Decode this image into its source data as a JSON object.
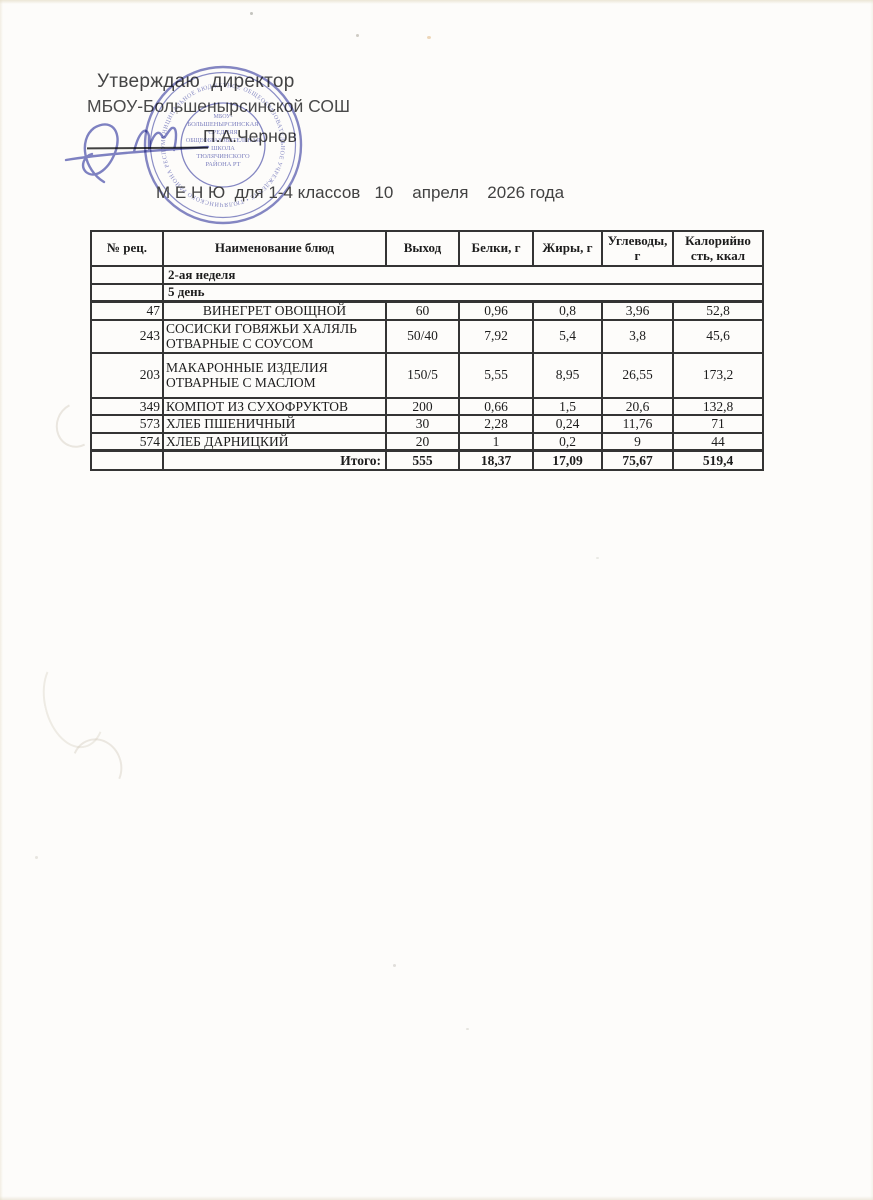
{
  "document": {
    "approval_line1": "Утверждаю  директор",
    "approval_line2": "МБОУ-Большенырсинской СОШ",
    "signer_name": "П.А.Чернов",
    "title": "М Е Н Ю  для 1-4 классов   10    апреля    2026 года"
  },
  "stamp": {
    "color": "#5a5fb2",
    "ring_text": "МУНИЦИПАЛЬНОЕ БЮДЖЕТНОЕ ОБЩЕОБРАЗОВАТЕЛЬНОЕ УЧРЕЖДЕНИЕ • ТЮЛЯЧИНСКОГО РАЙОНА РЕСПУБЛИКИ ТАТАРСТАН •",
    "center_lines": [
      "МБОУ-",
      "БОЛЬШЕНЫРСИНСКАЯ",
      "СРЕДНЯЯ",
      "ОБЩЕОБРАЗОВАТЕЛЬНАЯ",
      "ШКОЛА",
      "ТЮЛЯЧИНСКОГО",
      "РАЙОНА РТ"
    ]
  },
  "menu_table": {
    "headers": [
      "№ рец.",
      "Наименование блюд",
      "Выход",
      "Белки, г",
      "Жиры, г",
      "Углеводы, г",
      "Калорийно сть, ккал"
    ],
    "week_label": "2-ая неделя",
    "day_label": "5 день",
    "rows": [
      {
        "num": "47",
        "name": "ВИНЕГРЕТ ОВОЩНОЙ",
        "output": "60",
        "protein": "0,96",
        "fat": "0,8",
        "carbs": "3,96",
        "kcal": "52,8",
        "name_align": "center"
      },
      {
        "num": "243",
        "name": "СОСИСКИ ГОВЯЖЬИ ХАЛЯЛЬ\nОТВАРНЫЕ С СОУСОМ",
        "output": "50/40",
        "protein": "7,92",
        "fat": "5,4",
        "carbs": "3,8",
        "kcal": "45,6",
        "name_align": "left"
      },
      {
        "num": "203",
        "name": "МАКАРОННЫЕ ИЗДЕЛИЯ\nОТВАРНЫЕ С МАСЛОМ",
        "output": "150/5",
        "protein": "5,55",
        "fat": "8,95",
        "carbs": "26,55",
        "kcal": "173,2",
        "name_align": "left"
      },
      {
        "num": "349",
        "name": "КОМПОТ ИЗ СУХОФРУКТОВ",
        "output": "200",
        "protein": "0,66",
        "fat": "1,5",
        "carbs": "20,6",
        "kcal": "132,8",
        "name_align": "left"
      },
      {
        "num": "573",
        "name": "ХЛЕБ ПШЕНИЧНЫЙ",
        "output": "30",
        "protein": "2,28",
        "fat": "0,24",
        "carbs": "11,76",
        "kcal": "71",
        "name_align": "left"
      },
      {
        "num": "574",
        "name": "ХЛЕБ ДАРНИЦКИЙ",
        "output": "20",
        "protein": "1",
        "fat": "0,2",
        "carbs": "9",
        "kcal": "44",
        "name_align": "left"
      }
    ],
    "total": {
      "label": "Итого:",
      "values": [
        "555",
        "18,37",
        "17,09",
        "75,67",
        "519,4"
      ]
    }
  }
}
